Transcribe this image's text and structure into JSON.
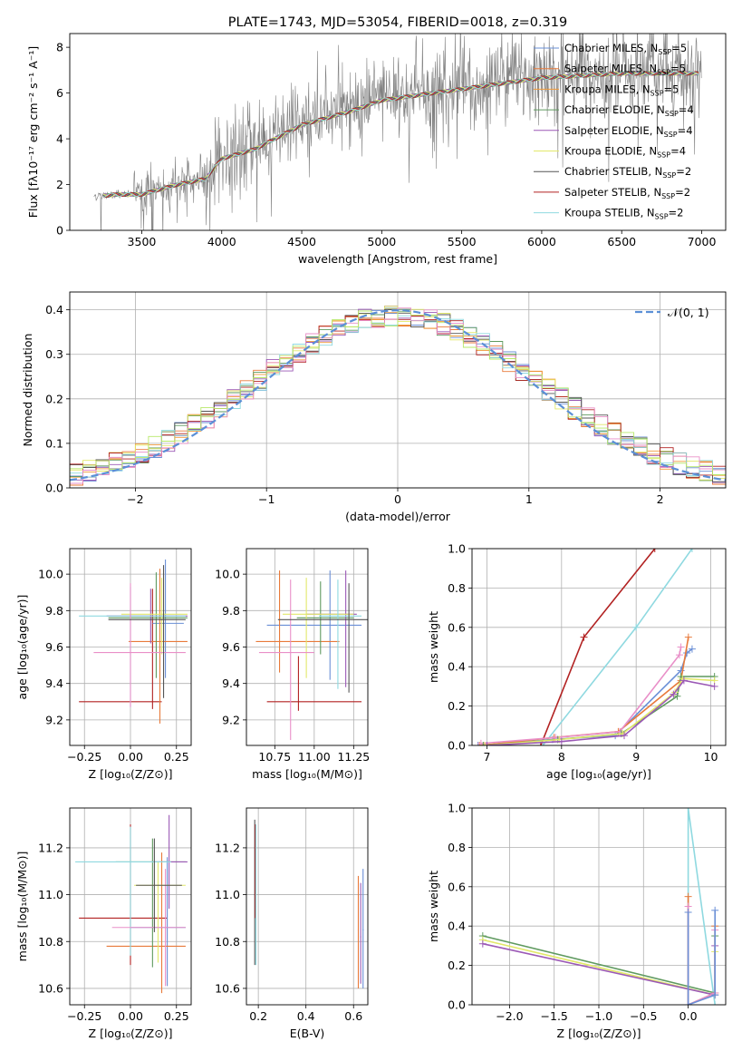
{
  "chart_data": [
    {
      "id": "spectrum",
      "type": "line",
      "title": "PLATE=1743, MJD=53054, FIBERID=0018, z=0.319",
      "xlabel": "wavelength [Angstrom, rest frame]",
      "ylabel": "Flux [fλ10⁻¹⁷ erg cm⁻² s⁻¹ A⁻¹]",
      "xlim": [
        3050,
        7150
      ],
      "ylim": [
        0,
        8.6
      ],
      "xticks": [
        "3500",
        "4000",
        "4500",
        "5000",
        "5500",
        "6000",
        "6500",
        "7000"
      ],
      "xtick_values": [
        3500,
        4000,
        4500,
        5000,
        5500,
        6000,
        6500,
        7000
      ],
      "yticks": [
        "0",
        "2",
        "4",
        "6",
        "8"
      ],
      "ytick_values": [
        0,
        2,
        4,
        6,
        8
      ],
      "legend_position": "upper right",
      "grid": false,
      "data_series": {
        "name": "data",
        "color": "#808080",
        "x_range": [
          3200,
          7000
        ],
        "continuum_knots": {
          "x": [
            3200,
            3350,
            3500,
            3700,
            3900,
            4000,
            4200,
            4500,
            4800,
            5000,
            5500,
            6000,
            6500,
            7000
          ],
          "y": [
            1.5,
            1.6,
            1.6,
            2.0,
            2.3,
            3.2,
            3.6,
            4.7,
            5.3,
            5.8,
            6.3,
            6.8,
            7.0,
            7.0
          ]
        }
      },
      "series": [
        {
          "name": "Chabrier MILES, Nₛₛₚ=5",
          "label_main": "Chabrier MILES, N",
          "label_sub": "SSP",
          "label_tail": "=5",
          "color": "#6a8fd6"
        },
        {
          "name": "Salpeter MILES, Nₛₛₚ=5",
          "label_main": "Salpeter MILES, N",
          "label_sub": "SSP",
          "label_tail": "=5",
          "color": "#e87a3a"
        },
        {
          "name": "Kroupa MILES, Nₛₛₚ=5",
          "label_main": "Kroupa MILES, N",
          "label_sub": "SSP",
          "label_tail": "=5",
          "color": "#f09a3a"
        },
        {
          "name": "Chabrier ELODIE, Nₛₛₚ=4",
          "label_main": "Chabrier ELODIE, N",
          "label_sub": "SSP",
          "label_tail": "=4",
          "color": "#5f9a5f"
        },
        {
          "name": "Salpeter ELODIE, Nₛₛₚ=4",
          "label_main": "Salpeter ELODIE, N",
          "label_sub": "SSP",
          "label_tail": "=4",
          "color": "#9b59b6"
        },
        {
          "name": "Kroupa ELODIE, Nₛₛₚ=4",
          "label_main": "Kroupa ELODIE, N",
          "label_sub": "SSP",
          "label_tail": "=4",
          "color": "#e2e86a"
        },
        {
          "name": "Chabrier STELIB, Nₛₛₚ=2",
          "label_main": "Chabrier STELIB, N",
          "label_sub": "SSP",
          "label_tail": "=2",
          "color": "#555555"
        },
        {
          "name": "Salpeter STELIB, Nₛₛₚ=2",
          "label_main": "Salpeter STELIB, N",
          "label_sub": "SSP",
          "label_tail": "=2",
          "color": "#b22222"
        },
        {
          "name": "Kroupa STELIB, Nₛₛₚ=2",
          "label_main": "Kroupa STELIB, N",
          "label_sub": "SSP",
          "label_tail": "=2",
          "color": "#8fd9e0"
        }
      ]
    },
    {
      "id": "residuals",
      "type": "histogram",
      "xlabel": "(data-model)/error",
      "ylabel": "Normed distribution",
      "xlim": [
        -2.5,
        2.5
      ],
      "ylim": [
        0,
        0.44
      ],
      "xticks": [
        "−2",
        "−1",
        "0",
        "1",
        "2"
      ],
      "xtick_values": [
        -2,
        -1,
        0,
        1,
        2
      ],
      "yticks": [
        "0.0",
        "0.1",
        "0.2",
        "0.3",
        "0.4"
      ],
      "ytick_values": [
        0,
        0.1,
        0.2,
        0.3,
        0.4
      ],
      "grid": true,
      "bin_width": 0.1,
      "gaussian": {
        "label": "𝒩(0, 1)",
        "mean": 0,
        "sigma": 1,
        "color": "#5b8fd6",
        "dashed": true
      },
      "colors": [
        "#6a8fd6",
        "#e87a3a",
        "#f09a3a",
        "#5f9a5f",
        "#9b59b6",
        "#e2e86a",
        "#555555",
        "#b22222",
        "#8fd9e0",
        "#e98fc8",
        "#b7e86a"
      ]
    },
    {
      "id": "age_vs_Z",
      "type": "errorbar",
      "xlabel": "Z [log₁₀(Z/Z⊙)]",
      "ylabel": "age  [log₁₀(age/yr)]",
      "xlim": [
        -0.33,
        0.33
      ],
      "ylim": [
        9.06,
        10.14
      ],
      "xticks": [
        "−0.25",
        "0.00",
        "0.25"
      ],
      "xtick_values": [
        -0.25,
        0,
        0.25
      ],
      "yticks": [
        "9.2",
        "9.4",
        "9.6",
        "9.8",
        "10.0"
      ],
      "ytick_values": [
        9.2,
        9.4,
        9.6,
        9.8,
        10.0
      ],
      "grid": true,
      "points": [
        {
          "x": 0.12,
          "y": 9.3,
          "xerr": [
            0.4,
            0.05
          ],
          "yerr": [
            0.04,
            0.62
          ],
          "color": "#b22222"
        },
        {
          "x": 0.19,
          "y": 9.73,
          "xerr": [
            0.07,
            0.1
          ],
          "yerr": [
            0.3,
            0.35
          ],
          "color": "#6a8fd6"
        },
        {
          "x": 0.16,
          "y": 9.63,
          "xerr": [
            0.17,
            0.15
          ],
          "yerr": [
            0.45,
            0.4
          ],
          "color": "#e87a3a"
        },
        {
          "x": 0.14,
          "y": 9.76,
          "xerr": [
            0.26,
            0.17
          ],
          "yerr": [
            0.33,
            0.25
          ],
          "color": "#5f9a5f"
        },
        {
          "x": 0.11,
          "y": 9.77,
          "xerr": [
            0.24,
            0.2
          ],
          "yerr": [
            0.15,
            0.15
          ],
          "color": "#9b59b6"
        },
        {
          "x": 0.17,
          "y": 9.78,
          "xerr": [
            0.22,
            0.14
          ],
          "yerr": [
            0.22,
            0.2
          ],
          "color": "#e2e86a"
        },
        {
          "x": 0.0,
          "y": 9.77,
          "xerr": [
            0.28,
            0.3
          ],
          "yerr": [
            0.5,
            0.16
          ],
          "color": "#8fd9e0"
        },
        {
          "x": 0.0,
          "y": 9.57,
          "xerr": [
            0.2,
            0.3
          ],
          "yerr": [
            0.3,
            0.38
          ],
          "color": "#e98fc8"
        },
        {
          "x": 0.18,
          "y": 9.75,
          "xerr": [
            0.3,
            0.12
          ],
          "yerr": [
            0.43,
            0.3
          ],
          "color": "#555555"
        }
      ]
    },
    {
      "id": "age_vs_mass",
      "type": "errorbar",
      "xlabel": "mass [log₁₀(M/M⊙)]",
      "ylabel": "",
      "xlim": [
        10.57,
        11.34
      ],
      "ylim": [
        9.06,
        10.14
      ],
      "xticks": [
        "10.75",
        "11.00",
        "11.25"
      ],
      "xtick_values": [
        10.75,
        11.0,
        11.25
      ],
      "yticks": [
        "9.2",
        "9.4",
        "9.6",
        "9.8",
        "10.0"
      ],
      "ytick_values": [
        9.2,
        9.4,
        9.6,
        9.8,
        10.0
      ],
      "grid": true,
      "points": [
        {
          "x": 10.9,
          "y": 9.3,
          "xerr": [
            0.2,
            0.4
          ],
          "yerr": [
            0.05,
            0.25
          ],
          "color": "#b22222"
        },
        {
          "x": 11.1,
          "y": 9.72,
          "xerr": [
            0.4,
            0.2
          ],
          "yerr": [
            0.3,
            0.3
          ],
          "color": "#6a8fd6"
        },
        {
          "x": 10.78,
          "y": 9.63,
          "xerr": [
            0.15,
            0.38
          ],
          "yerr": [
            0.17,
            0.39
          ],
          "color": "#e87a3a"
        },
        {
          "x": 11.04,
          "y": 9.76,
          "xerr": [
            0.15,
            0.21
          ],
          "yerr": [
            0.2,
            0.2
          ],
          "color": "#5f9a5f"
        },
        {
          "x": 11.2,
          "y": 9.78,
          "xerr": [
            0.25,
            0.07
          ],
          "yerr": [
            0.4,
            0.24
          ],
          "color": "#9b59b6"
        },
        {
          "x": 10.95,
          "y": 9.78,
          "xerr": [
            0.15,
            0.3
          ],
          "yerr": [
            0.35,
            0.2
          ],
          "color": "#e2e86a"
        },
        {
          "x": 11.15,
          "y": 9.77,
          "xerr": [
            0.12,
            0.15
          ],
          "yerr": [
            0.4,
            0.2
          ],
          "color": "#8fd9e0"
        },
        {
          "x": 10.85,
          "y": 9.57,
          "xerr": [
            0.2,
            0.15
          ],
          "yerr": [
            0.48,
            0.4
          ],
          "color": "#e98fc8"
        },
        {
          "x": 11.22,
          "y": 9.75,
          "xerr": [
            0.45,
            0.2
          ],
          "yerr": [
            0.4,
            0.2
          ],
          "color": "#555555"
        }
      ]
    },
    {
      "id": "weight_vs_age",
      "type": "line",
      "xlabel": "age  [log₁₀(age/yr)]",
      "ylabel": "mass weight",
      "xlim": [
        6.8,
        10.2
      ],
      "ylim": [
        0,
        1.0
      ],
      "xticks": [
        "7",
        "8",
        "9",
        "10"
      ],
      "xtick_values": [
        7,
        8,
        9,
        10
      ],
      "yticks": [
        "0.0",
        "0.2",
        "0.4",
        "0.6",
        "0.8",
        "1.0"
      ],
      "ytick_values": [
        0,
        0.2,
        0.4,
        0.6,
        0.8,
        1.0
      ],
      "grid": true,
      "series": [
        {
          "color": "#b22222",
          "x": [
            7.72,
            8.3,
            9.25
          ],
          "y": [
            0.0,
            0.55,
            1.0
          ]
        },
        {
          "color": "#8fd9e0",
          "x": [
            7.75,
            9.0,
            9.75
          ],
          "y": [
            0.0,
            0.6,
            1.0
          ]
        },
        {
          "color": "#6a8fd6",
          "x": [
            6.88,
            7.88,
            8.72,
            9.6,
            9.68,
            9.75
          ],
          "y": [
            0.0,
            0.03,
            0.05,
            0.38,
            0.47,
            0.49
          ]
        },
        {
          "color": "#e87a3a",
          "x": [
            6.9,
            7.9,
            8.76,
            9.6,
            9.7
          ],
          "y": [
            0.0,
            0.04,
            0.07,
            0.33,
            0.55
          ]
        },
        {
          "color": "#e98fc8",
          "x": [
            6.92,
            7.92,
            8.78,
            9.58,
            9.6
          ],
          "y": [
            0.01,
            0.04,
            0.07,
            0.46,
            0.5
          ]
        },
        {
          "color": "#5f9a5f",
          "x": [
            6.95,
            7.95,
            8.8,
            9.55,
            9.6,
            10.05
          ],
          "y": [
            0.0,
            0.03,
            0.06,
            0.25,
            0.35,
            0.35
          ]
        },
        {
          "color": "#e2e86a",
          "x": [
            6.97,
            7.97,
            8.82,
            9.52,
            9.62,
            10.05
          ],
          "y": [
            0.0,
            0.03,
            0.06,
            0.27,
            0.34,
            0.33
          ]
        },
        {
          "color": "#9b59b6",
          "x": [
            7.0,
            8.0,
            8.84,
            9.5,
            9.64,
            10.05
          ],
          "y": [
            0.0,
            0.02,
            0.05,
            0.26,
            0.33,
            0.3
          ]
        }
      ]
    },
    {
      "id": "mass_vs_Z",
      "type": "errorbar",
      "xlabel": "Z [log₁₀(Z/Z⊙)]",
      "ylabel": "mass [log₁₀(M/M⊙)]",
      "xlim": [
        -0.33,
        0.33
      ],
      "ylim": [
        10.53,
        11.37
      ],
      "xticks": [
        "−0.25",
        "0.00",
        "0.25"
      ],
      "xtick_values": [
        -0.25,
        0,
        0.25
      ],
      "yticks": [
        "10.6",
        "10.8",
        "11.0",
        "11.2"
      ],
      "ytick_values": [
        10.6,
        10.8,
        11.0,
        11.2
      ],
      "grid": true,
      "points": [
        {
          "x": 0.0,
          "y": 10.9,
          "xerr": [
            0.28,
            0.2
          ],
          "yerr": [
            0.2,
            0.4
          ],
          "color": "#b22222"
        },
        {
          "x": 0.2,
          "y": 10.86,
          "xerr": [
            0.2,
            0.1
          ],
          "yerr": [
            0.25,
            0.3
          ],
          "color": "#6a8fd6"
        },
        {
          "x": 0.17,
          "y": 10.78,
          "xerr": [
            0.3,
            0.13
          ],
          "yerr": [
            0.2,
            0.4
          ],
          "color": "#e87a3a"
        },
        {
          "x": 0.12,
          "y": 11.14,
          "xerr": [
            0.2,
            0.18
          ],
          "yerr": [
            0.45,
            0.1
          ],
          "color": "#5f9a5f"
        },
        {
          "x": 0.21,
          "y": 11.14,
          "xerr": [
            0.1,
            0.1
          ],
          "yerr": [
            0.2,
            0.2
          ],
          "color": "#9b59b6"
        },
        {
          "x": 0.15,
          "y": 11.04,
          "xerr": [
            0.13,
            0.15
          ],
          "yerr": [
            0.33,
            0.1
          ],
          "color": "#e2e86a"
        },
        {
          "x": 0.0,
          "y": 11.14,
          "xerr": [
            0.3,
            0.22
          ],
          "yerr": [
            0.4,
            0.15
          ],
          "color": "#8fd9e0"
        },
        {
          "x": 0.19,
          "y": 10.86,
          "xerr": [
            0.29,
            0.11
          ],
          "yerr": [
            0.25,
            0.25
          ],
          "color": "#e98fc8"
        },
        {
          "x": 0.13,
          "y": 11.04,
          "xerr": [
            0.1,
            0.15
          ],
          "yerr": [
            0.2,
            0.2
          ],
          "color": "#555555"
        }
      ]
    },
    {
      "id": "mass_vs_EBV",
      "type": "errorbar",
      "xlabel": "E(B-V)",
      "ylabel": "",
      "xlim": [
        0.15,
        0.66
      ],
      "ylim": [
        10.53,
        11.37
      ],
      "xticks": [
        "0.2",
        "0.4",
        "0.6"
      ],
      "xtick_values": [
        0.2,
        0.4,
        0.6
      ],
      "yticks": [
        "10.6",
        "10.8",
        "11.0",
        "11.2"
      ],
      "ytick_values": [
        10.6,
        10.8,
        11.0,
        11.2
      ],
      "grid": true,
      "points": [
        {
          "x": 0.185,
          "y": 11.0,
          "xerr": [
            0.002,
            0.002
          ],
          "yerr": [
            0.3,
            0.32
          ],
          "color": "#555555"
        },
        {
          "x": 0.187,
          "y": 11.1,
          "xerr": [
            0.002,
            0.002
          ],
          "yerr": [
            0.2,
            0.2
          ],
          "color": "#b22222"
        },
        {
          "x": 0.19,
          "y": 10.95,
          "xerr": [
            0.002,
            0.002
          ],
          "yerr": [
            0.25,
            0.35
          ],
          "color": "#8fd9e0"
        },
        {
          "x": 0.62,
          "y": 10.85,
          "xerr": [
            0.002,
            0.002
          ],
          "yerr": [
            0.25,
            0.23
          ],
          "color": "#e87a3a"
        },
        {
          "x": 0.63,
          "y": 10.82,
          "xerr": [
            0.002,
            0.002
          ],
          "yerr": [
            0.2,
            0.23
          ],
          "color": "#9b59b6"
        },
        {
          "x": 0.64,
          "y": 10.85,
          "xerr": [
            0.002,
            0.002
          ],
          "yerr": [
            0.25,
            0.26
          ],
          "color": "#6a8fd6"
        }
      ]
    },
    {
      "id": "weight_vs_Z",
      "type": "line",
      "xlabel": "Z [log₁₀(Z/Z⊙)]",
      "ylabel": "mass weight",
      "xlim": [
        -2.42,
        0.42
      ],
      "ylim": [
        0,
        1.0
      ],
      "xticks": [
        "−2.0",
        "−1.5",
        "−1.0",
        "−0.5",
        "0.0"
      ],
      "xtick_values": [
        -2.0,
        -1.5,
        -1.0,
        -0.5,
        0.0
      ],
      "yticks": [
        "0.0",
        "0.2",
        "0.4",
        "0.6",
        "0.8",
        "1.0"
      ],
      "ytick_values": [
        0,
        0.2,
        0.4,
        0.6,
        0.8,
        1.0
      ],
      "grid": true,
      "series": [
        {
          "color": "#8fd9e0",
          "x": [
            0.0,
            0.0,
            0.3
          ],
          "y": [
            0.0,
            1.0,
            0.0
          ]
        },
        {
          "color": "#5f9a5f",
          "x": [
            -2.3,
            0.3,
            0.3
          ],
          "y": [
            0.35,
            0.06,
            0.35
          ]
        },
        {
          "color": "#e2e86a",
          "x": [
            -2.3,
            0.3,
            0.3
          ],
          "y": [
            0.33,
            0.05,
            0.27
          ]
        },
        {
          "color": "#9b59b6",
          "x": [
            -2.3,
            0.3,
            0.3
          ],
          "y": [
            0.31,
            0.05,
            0.3
          ]
        },
        {
          "color": "#e87a3a",
          "x": [
            0.0,
            0.0,
            0.3,
            0.3
          ],
          "y": [
            0.55,
            0.0,
            0.06,
            0.4
          ]
        },
        {
          "color": "#e98fc8",
          "x": [
            0.0,
            0.0,
            0.3,
            0.3
          ],
          "y": [
            0.5,
            0.0,
            0.06,
            0.38
          ]
        },
        {
          "color": "#6a8fd6",
          "x": [
            0.0,
            0.0,
            0.3,
            0.3
          ],
          "y": [
            0.47,
            0.0,
            0.05,
            0.48
          ]
        }
      ]
    }
  ]
}
